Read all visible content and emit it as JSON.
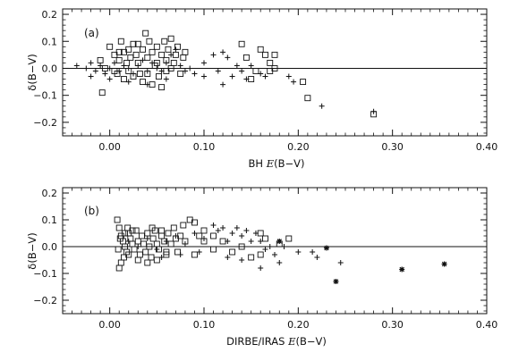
{
  "chart_data": [
    {
      "type": "scatter",
      "panel_label": "(a)",
      "xlabel_prefix": "BH ",
      "xlabel_italic": "E",
      "xlabel_suffix": "(B−V)",
      "ylabel": "δ(B−V)",
      "xlim": [
        -0.05,
        0.4
      ],
      "ylim": [
        -0.25,
        0.22
      ],
      "x_ticks": [
        0.0,
        0.1,
        0.2,
        0.3,
        0.4
      ],
      "x_tick_labels": [
        "0.00",
        "0.10",
        "0.20",
        "0.30",
        "0.40"
      ],
      "y_ticks": [
        -0.2,
        -0.1,
        0.0,
        0.1,
        0.2
      ],
      "y_tick_labels": [
        "−0.2",
        "−0.1",
        "0.0",
        "0.1",
        "0.2"
      ],
      "zero_line": 0.0,
      "grid": false,
      "series": [
        {
          "marker": "square",
          "points": [
            [
              -0.01,
              0.03
            ],
            [
              0.0,
              0.08
            ],
            [
              0.005,
              0.05
            ],
            [
              0.01,
              0.03
            ],
            [
              0.012,
              0.1
            ],
            [
              0.015,
              0.06
            ],
            [
              0.018,
              0.02
            ],
            [
              0.02,
              -0.01
            ],
            [
              0.022,
              0.04
            ],
            [
              0.025,
              0.09
            ],
            [
              0.028,
              0.05
            ],
            [
              0.03,
              0.02
            ],
            [
              0.032,
              -0.02
            ],
            [
              0.035,
              0.07
            ],
            [
              0.038,
              0.13
            ],
            [
              0.04,
              0.04
            ],
            [
              0.042,
              0.1
            ],
            [
              0.045,
              0.06
            ],
            [
              0.048,
              0.01
            ],
            [
              0.05,
              0.08
            ],
            [
              0.052,
              -0.03
            ],
            [
              0.055,
              0.05
            ],
            [
              0.058,
              0.1
            ],
            [
              0.06,
              0.03
            ],
            [
              0.062,
              0.07
            ],
            [
              0.065,
              0.11
            ],
            [
              0.068,
              0.02
            ],
            [
              0.07,
              0.05
            ],
            [
              0.072,
              0.08
            ],
            [
              0.075,
              -0.02
            ],
            [
              0.078,
              0.04
            ],
            [
              0.08,
              0.06
            ],
            [
              -0.005,
              0.0
            ],
            [
              0.008,
              -0.02
            ],
            [
              0.015,
              -0.04
            ],
            [
              0.025,
              -0.03
            ],
            [
              0.035,
              -0.05
            ],
            [
              0.045,
              -0.06
            ],
            [
              0.055,
              -0.07
            ],
            [
              -0.008,
              -0.09
            ],
            [
              0.01,
              0.06
            ],
            [
              0.02,
              0.07
            ],
            [
              0.03,
              0.09
            ],
            [
              0.05,
              0.02
            ],
            [
              0.06,
              -0.01
            ],
            [
              0.005,
              -0.01
            ],
            [
              0.04,
              -0.02
            ],
            [
              0.065,
              0.0
            ],
            [
              0.14,
              0.09
            ],
            [
              0.145,
              0.04
            ],
            [
              0.16,
              0.07
            ],
            [
              0.165,
              0.05
            ],
            [
              0.17,
              0.02
            ],
            [
              0.175,
              0.0
            ],
            [
              0.155,
              -0.01
            ],
            [
              0.15,
              -0.04
            ],
            [
              0.17,
              -0.01
            ],
            [
              0.175,
              0.05
            ],
            [
              0.205,
              -0.05
            ],
            [
              0.21,
              -0.11
            ],
            [
              0.28,
              -0.17
            ]
          ]
        },
        {
          "marker": "plus",
          "points": [
            [
              -0.035,
              0.01
            ],
            [
              -0.025,
              0.0
            ],
            [
              -0.02,
              0.02
            ],
            [
              -0.015,
              -0.01
            ],
            [
              -0.01,
              0.01
            ],
            [
              -0.005,
              -0.02
            ],
            [
              0.0,
              0.0
            ],
            [
              0.005,
              0.02
            ],
            [
              0.01,
              -0.01
            ],
            [
              0.015,
              0.01
            ],
            [
              0.02,
              0.0
            ],
            [
              0.025,
              -0.02
            ],
            [
              0.03,
              0.01
            ],
            [
              0.035,
              0.03
            ],
            [
              0.04,
              -0.01
            ],
            [
              0.045,
              0.02
            ],
            [
              0.05,
              0.0
            ],
            [
              0.055,
              -0.01
            ],
            [
              0.06,
              0.02
            ],
            [
              0.065,
              0.05
            ],
            [
              0.07,
              0.07
            ],
            [
              0.075,
              0.01
            ],
            [
              0.08,
              -0.01
            ],
            [
              0.085,
              0.0
            ],
            [
              0.09,
              -0.02
            ],
            [
              0.1,
              0.02
            ],
            [
              0.11,
              0.05
            ],
            [
              0.115,
              -0.01
            ],
            [
              0.12,
              0.06
            ],
            [
              0.125,
              0.04
            ],
            [
              0.13,
              -0.03
            ],
            [
              0.135,
              0.01
            ],
            [
              0.14,
              -0.01
            ],
            [
              0.145,
              -0.04
            ],
            [
              0.15,
              0.01
            ],
            [
              0.16,
              -0.02
            ],
            [
              0.165,
              -0.03
            ],
            [
              0.19,
              -0.03
            ],
            [
              0.195,
              -0.05
            ],
            [
              0.225,
              -0.14
            ],
            [
              0.28,
              -0.16
            ],
            [
              -0.02,
              -0.03
            ],
            [
              0.0,
              -0.04
            ],
            [
              0.02,
              -0.05
            ],
            [
              0.04,
              -0.06
            ],
            [
              0.06,
              -0.04
            ],
            [
              0.1,
              -0.03
            ],
            [
              0.12,
              -0.06
            ]
          ]
        }
      ]
    },
    {
      "type": "scatter",
      "panel_label": "(b)",
      "xlabel_prefix": "DIRBE/IRAS ",
      "xlabel_italic": "E",
      "xlabel_suffix": "(B−V)",
      "ylabel": "δ(B−V)",
      "xlim": [
        -0.05,
        0.4
      ],
      "ylim": [
        -0.25,
        0.22
      ],
      "x_ticks": [
        0.0,
        0.1,
        0.2,
        0.3,
        0.4
      ],
      "x_tick_labels": [
        "0.00",
        "0.10",
        "0.20",
        "0.30",
        "0.40"
      ],
      "y_ticks": [
        -0.2,
        -0.1,
        0.0,
        0.1,
        0.2
      ],
      "y_tick_labels": [
        "−0.2",
        "−0.1",
        "0.0",
        "0.1",
        "0.2"
      ],
      "zero_line": 0.0,
      "grid": false,
      "series": [
        {
          "marker": "square",
          "points": [
            [
              0.008,
              0.1
            ],
            [
              0.01,
              0.07
            ],
            [
              0.012,
              0.04
            ],
            [
              0.014,
              0.02
            ],
            [
              0.016,
              0.0
            ],
            [
              0.018,
              -0.02
            ],
            [
              0.02,
              0.05
            ],
            [
              0.022,
              0.03
            ],
            [
              0.024,
              0.01
            ],
            [
              0.026,
              -0.01
            ],
            [
              0.028,
              0.06
            ],
            [
              0.03,
              0.02
            ],
            [
              0.032,
              -0.03
            ],
            [
              0.034,
              0.04
            ],
            [
              0.036,
              0.01
            ],
            [
              0.038,
              -0.02
            ],
            [
              0.04,
              0.05
            ],
            [
              0.042,
              0.0
            ],
            [
              0.044,
              -0.04
            ],
            [
              0.046,
              0.03
            ],
            [
              0.048,
              0.06
            ],
            [
              0.05,
              0.01
            ],
            [
              0.052,
              -0.01
            ],
            [
              0.055,
              0.04
            ],
            [
              0.058,
              0.02
            ],
            [
              0.06,
              -0.03
            ],
            [
              0.062,
              0.05
            ],
            [
              0.065,
              0.01
            ],
            [
              0.068,
              0.07
            ],
            [
              0.07,
              0.03
            ],
            [
              0.072,
              -0.02
            ],
            [
              0.075,
              0.04
            ],
            [
              0.078,
              0.08
            ],
            [
              0.08,
              0.02
            ],
            [
              0.085,
              0.1
            ],
            [
              0.09,
              0.09
            ],
            [
              0.095,
              0.04
            ],
            [
              0.1,
              0.02
            ],
            [
              0.11,
              -0.01
            ],
            [
              0.12,
              0.02
            ],
            [
              0.13,
              -0.02
            ],
            [
              0.14,
              0.0
            ],
            [
              0.15,
              -0.04
            ],
            [
              0.01,
              -0.08
            ],
            [
              0.012,
              -0.06
            ],
            [
              0.015,
              -0.04
            ],
            [
              0.02,
              -0.03
            ],
            [
              0.03,
              -0.05
            ],
            [
              0.04,
              -0.06
            ],
            [
              0.05,
              -0.05
            ],
            [
              0.06,
              -0.02
            ],
            [
              0.016,
              0.05
            ],
            [
              0.024,
              0.06
            ],
            [
              0.045,
              0.07
            ],
            [
              0.055,
              0.06
            ],
            [
              0.009,
              -0.01
            ],
            [
              0.011,
              0.03
            ],
            [
              0.019,
              0.07
            ],
            [
              0.16,
              0.05
            ],
            [
              0.165,
              0.03
            ],
            [
              0.18,
              0.01
            ],
            [
              0.19,
              0.03
            ],
            [
              0.16,
              -0.03
            ],
            [
              0.1,
              0.06
            ],
            [
              0.11,
              0.04
            ],
            [
              0.09,
              -0.03
            ]
          ]
        },
        {
          "marker": "plus",
          "points": [
            [
              0.02,
              0.02
            ],
            [
              0.03,
              0.0
            ],
            [
              0.04,
              0.03
            ],
            [
              0.05,
              -0.01
            ],
            [
              0.06,
              0.02
            ],
            [
              0.07,
              0.04
            ],
            [
              0.08,
              0.01
            ],
            [
              0.09,
              0.05
            ],
            [
              0.1,
              0.03
            ],
            [
              0.11,
              0.08
            ],
            [
              0.115,
              0.06
            ],
            [
              0.12,
              0.07
            ],
            [
              0.13,
              0.05
            ],
            [
              0.135,
              0.07
            ],
            [
              0.14,
              0.04
            ],
            [
              0.145,
              0.06
            ],
            [
              0.15,
              0.02
            ],
            [
              0.155,
              0.05
            ],
            [
              0.16,
              0.02
            ],
            [
              0.165,
              -0.01
            ],
            [
              0.17,
              0.0
            ],
            [
              0.175,
              -0.03
            ],
            [
              0.18,
              -0.06
            ],
            [
              0.185,
              0.0
            ],
            [
              0.2,
              -0.02
            ],
            [
              0.215,
              -0.02
            ],
            [
              0.22,
              -0.04
            ],
            [
              0.245,
              -0.06
            ],
            [
              0.055,
              -0.04
            ],
            [
              0.075,
              -0.03
            ],
            [
              0.095,
              -0.02
            ],
            [
              0.125,
              -0.04
            ],
            [
              0.14,
              -0.05
            ],
            [
              0.16,
              -0.08
            ],
            [
              0.125,
              0.02
            ]
          ]
        },
        {
          "marker": "asterisk",
          "points": [
            [
              0.18,
              0.02
            ],
            [
              0.23,
              -0.005
            ],
            [
              0.24,
              -0.13
            ],
            [
              0.31,
              -0.085
            ],
            [
              0.355,
              -0.065
            ]
          ]
        }
      ]
    }
  ]
}
